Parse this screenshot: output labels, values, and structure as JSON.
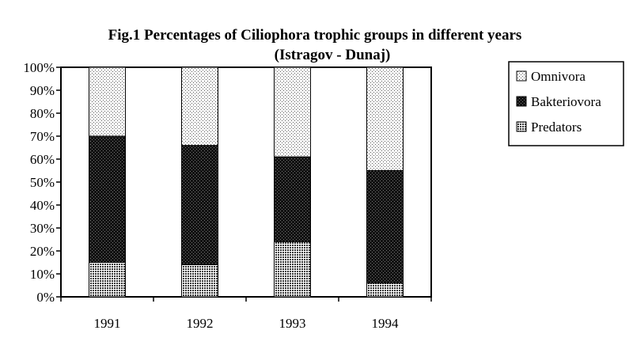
{
  "chart_data": {
    "type": "bar",
    "stacked": true,
    "title": "Fig.1   Percentages of Ciliophora trophic groups in different years",
    "subtitle": "(Istragov - Dunaj)",
    "categories": [
      "1991",
      "1992",
      "1993",
      "1994"
    ],
    "series": [
      {
        "name": "Predators",
        "values": [
          15,
          14,
          24,
          6
        ],
        "fill": "#8c8c8c"
      },
      {
        "name": "Bakteriovora",
        "values": [
          55,
          52,
          37,
          49
        ],
        "fill": "#1e1e1e"
      },
      {
        "name": "Omnivora",
        "values": [
          30,
          34,
          39,
          45
        ],
        "fill": "#d8d8d8"
      }
    ],
    "legend_order": [
      "Omnivora",
      "Bakteriovora",
      "Predators"
    ],
    "yticks": [
      "0%",
      "10%",
      "20%",
      "30%",
      "40%",
      "50%",
      "60%",
      "70%",
      "80%",
      "90%",
      "100%"
    ],
    "ylim": [
      0,
      100
    ],
    "xlabel": "",
    "ylabel": "",
    "grid": false,
    "legend_position": "right"
  }
}
